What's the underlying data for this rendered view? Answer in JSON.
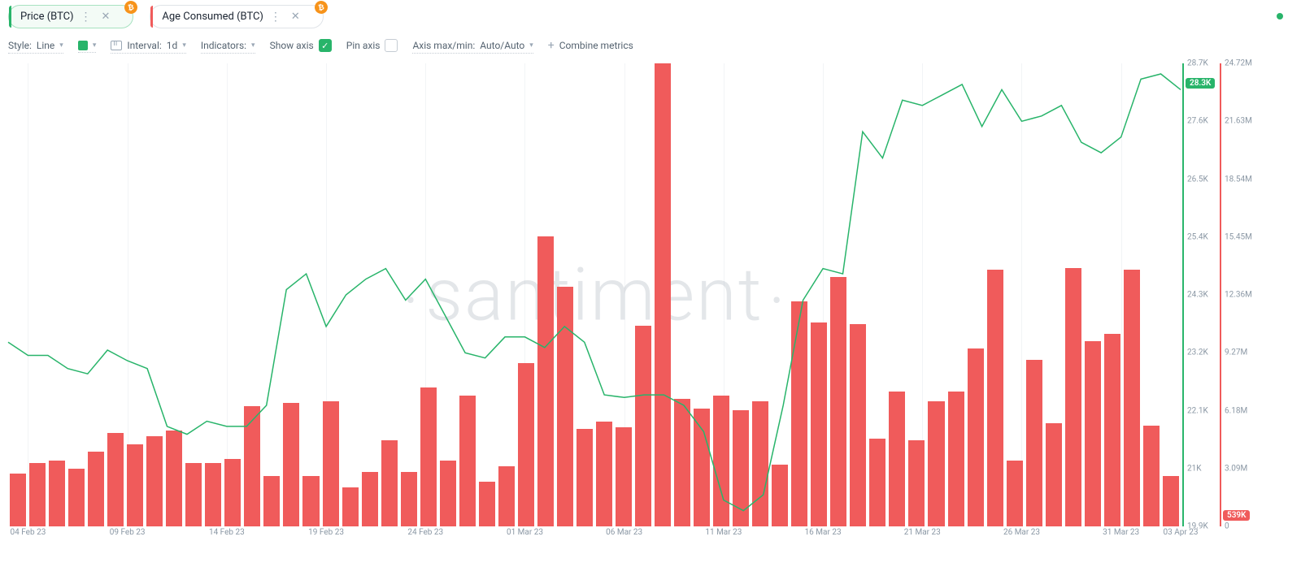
{
  "colors": {
    "price_line": "#28b46a",
    "price_tab_accent": "#28b46a",
    "age_bar": "#f05b5b",
    "age_tab_accent": "#f05b5b",
    "btc_badge": "#f7931a",
    "grid": "#f2f4f6",
    "watermark": "#b0b8c1",
    "status_dot": "#28b46a",
    "toolbar_text": "#556370",
    "axis_text": "#8a97a4",
    "checkbox_checked": "#28b46a",
    "live_price_bg": "#28b46a",
    "live_age_bg": "#f05b5b"
  },
  "tabs": [
    {
      "label": "Price (BTC)",
      "accent": "price",
      "active": true,
      "closable": true
    },
    {
      "label": "Age Consumed (BTC)",
      "accent": "age",
      "active": false,
      "closable": true
    }
  ],
  "btc_badge_glyph": "₿",
  "toolbar": {
    "style_label": "Style:",
    "style_value": "Line",
    "interval_label": "Interval:",
    "interval_value": "1d",
    "indicators_label": "Indicators:",
    "show_axis_label": "Show axis",
    "show_axis_checked": true,
    "pin_axis_label": "Pin axis",
    "pin_axis_checked": false,
    "axis_minmax_label": "Axis max/min:",
    "axis_minmax_value": "Auto/Auto",
    "combine_label": "Combine metrics"
  },
  "watermark": "santiment",
  "chart": {
    "x_dates": [
      "2023-02-03",
      "2023-02-04",
      "2023-02-05",
      "2023-02-06",
      "2023-02-07",
      "2023-02-08",
      "2023-02-09",
      "2023-02-10",
      "2023-02-11",
      "2023-02-12",
      "2023-02-13",
      "2023-02-14",
      "2023-02-15",
      "2023-02-16",
      "2023-02-17",
      "2023-02-18",
      "2023-02-19",
      "2023-02-20",
      "2023-02-21",
      "2023-02-22",
      "2023-02-23",
      "2023-02-24",
      "2023-02-25",
      "2023-02-26",
      "2023-02-27",
      "2023-02-28",
      "2023-03-01",
      "2023-03-02",
      "2023-03-03",
      "2023-03-04",
      "2023-03-05",
      "2023-03-06",
      "2023-03-07",
      "2023-03-08",
      "2023-03-09",
      "2023-03-10",
      "2023-03-11",
      "2023-03-12",
      "2023-03-13",
      "2023-03-14",
      "2023-03-15",
      "2023-03-16",
      "2023-03-17",
      "2023-03-18",
      "2023-03-19",
      "2023-03-20",
      "2023-03-21",
      "2023-03-22",
      "2023-03-23",
      "2023-03-24",
      "2023-03-25",
      "2023-03-26",
      "2023-03-27",
      "2023-03-28",
      "2023-03-29",
      "2023-03-30",
      "2023-03-31",
      "2023-04-01",
      "2023-04-02",
      "2023-04-03"
    ],
    "x_ticks": [
      {
        "i": 1,
        "label": "04 Feb 23"
      },
      {
        "i": 6,
        "label": "09 Feb 23"
      },
      {
        "i": 11,
        "label": "14 Feb 23"
      },
      {
        "i": 16,
        "label": "19 Feb 23"
      },
      {
        "i": 21,
        "label": "24 Feb 23"
      },
      {
        "i": 26,
        "label": "01 Mar 23"
      },
      {
        "i": 31,
        "label": "06 Mar 23"
      },
      {
        "i": 36,
        "label": "11 Mar 23"
      },
      {
        "i": 41,
        "label": "16 Mar 23"
      },
      {
        "i": 46,
        "label": "21 Mar 23"
      },
      {
        "i": 51,
        "label": "26 Mar 23"
      },
      {
        "i": 56,
        "label": "31 Mar 23"
      },
      {
        "i": 59,
        "label": "03 Apr 23"
      }
    ],
    "price": {
      "ylim": [
        19900,
        28700
      ],
      "ticks": [
        {
          "v": 28700,
          "label": "28.7K"
        },
        {
          "v": 27600,
          "label": "27.6K"
        },
        {
          "v": 26500,
          "label": "26.5K"
        },
        {
          "v": 25400,
          "label": "25.4K"
        },
        {
          "v": 24300,
          "label": "24.3K"
        },
        {
          "v": 23200,
          "label": "23.2K"
        },
        {
          "v": 22100,
          "label": "22.1K"
        },
        {
          "v": 21000,
          "label": "21K"
        },
        {
          "v": 19900,
          "label": "19.9K"
        }
      ],
      "live_value": 28300,
      "live_label": "28.3K",
      "values": [
        23400,
        23150,
        23150,
        22900,
        22800,
        23250,
        23050,
        22900,
        21800,
        21650,
        21900,
        21800,
        21800,
        22200,
        24400,
        24700,
        23700,
        24300,
        24600,
        24800,
        24200,
        24600,
        23900,
        23200,
        23100,
        23500,
        23500,
        23300,
        23700,
        23400,
        22400,
        22350,
        22400,
        22400,
        22200,
        21700,
        20400,
        20200,
        20500,
        22200,
        24200,
        24800,
        24700,
        27400,
        26900,
        28000,
        27900,
        28100,
        28300,
        27500,
        28200,
        27600,
        27700,
        27900,
        27200,
        27000,
        27300,
        28400,
        28500,
        28200
      ]
    },
    "age": {
      "ylim": [
        0,
        24720000
      ],
      "ticks": [
        {
          "v": 24720000,
          "label": "24.72M"
        },
        {
          "v": 21630000,
          "label": "21.63M"
        },
        {
          "v": 18540000,
          "label": "18.54M"
        },
        {
          "v": 15450000,
          "label": "15.45M"
        },
        {
          "v": 12360000,
          "label": "12.36M"
        },
        {
          "v": 9270000,
          "label": "9.27M"
        },
        {
          "v": 6180000,
          "label": "6.18M"
        },
        {
          "v": 3090000,
          "label": "3.09M"
        },
        {
          "v": 0,
          "label": "0"
        }
      ],
      "live_value": 539000,
      "live_label": "539K",
      "values": [
        2800000,
        3400000,
        3500000,
        3100000,
        4000000,
        5000000,
        4400000,
        4800000,
        5100000,
        3400000,
        3400000,
        3600000,
        6400000,
        2700000,
        6600000,
        2700000,
        6700000,
        2100000,
        2900000,
        4600000,
        2900000,
        7400000,
        3500000,
        7000000,
        2400000,
        3200000,
        8700000,
        15500000,
        12800000,
        5200000,
        5600000,
        5300000,
        10700000,
        24700000,
        6800000,
        6300000,
        7000000,
        6200000,
        6700000,
        3300000,
        12000000,
        10900000,
        13300000,
        10800000,
        4700000,
        7200000,
        4600000,
        6700000,
        7200000,
        9500000,
        13700000,
        3500000,
        8900000,
        5500000,
        13800000,
        9900000,
        10300000,
        13700000,
        5400000,
        2700000
      ]
    }
  }
}
